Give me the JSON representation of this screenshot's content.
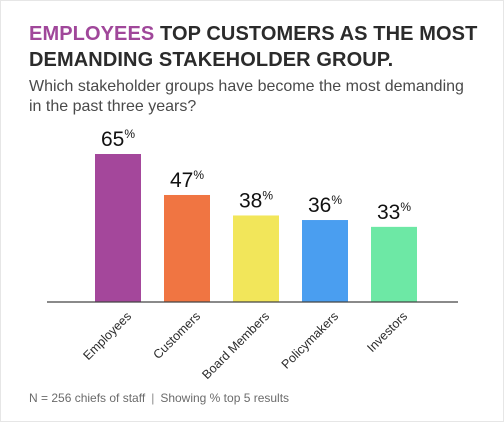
{
  "header": {
    "headline_accent": "EMPLOYEES",
    "headline_rest": "TOP CUSTOMERS AS THE MOST DEMANDING STAKEHOLDER GROUP.",
    "subtitle": "Which stakeholder groups have become the most demanding in the past three years?"
  },
  "footnote": {
    "sample": "N = 256 chiefs of staff",
    "separator": "|",
    "note": "Showing % top 5 results"
  },
  "colors": {
    "accent": "#a0479a"
  },
  "chart_data": {
    "type": "bar",
    "title": "",
    "xlabel": "",
    "ylabel": "",
    "ylim": [
      0,
      100
    ],
    "grid": false,
    "legend": "none",
    "value_suffix": "%",
    "categories": [
      "Employees",
      "Customers",
      "Board Members",
      "Policymakers",
      "Investors"
    ],
    "values": [
      65,
      47,
      38,
      36,
      33
    ],
    "colors": [
      "#a4479b",
      "#f07542",
      "#f2e65a",
      "#4a9ef0",
      "#6de8a5"
    ]
  }
}
